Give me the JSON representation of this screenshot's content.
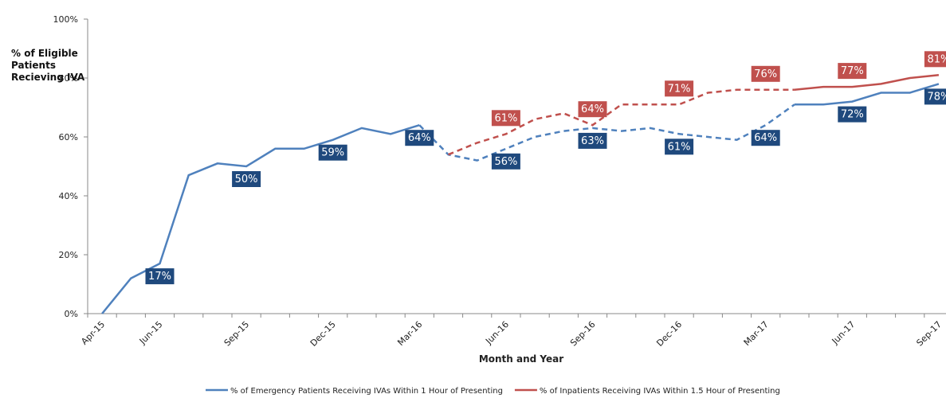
{
  "chart_data": {
    "type": "line",
    "y_axis_label": "% of Eligible Patients Recieving IVA",
    "x_axis_label": "Month and Year",
    "categories": [
      "Apr-15",
      null,
      "Jun-15",
      null,
      null,
      "Sep-15",
      null,
      null,
      "Dec-15",
      null,
      null,
      "Mar-16",
      null,
      null,
      "Jun-16",
      null,
      null,
      "Sep-16",
      null,
      null,
      "Dec-16",
      null,
      null,
      "Mar-17",
      null,
      null,
      "Jun-17",
      null,
      null,
      "Sep-17"
    ],
    "series": [
      {
        "name": "% of Emergency Patients Receiving IVAs Within 1 Hour of Presenting",
        "color": "#4f81bd",
        "label_color": "#1f497d",
        "dashed_range": [
          11,
          24
        ],
        "values": [
          0,
          12,
          17,
          47,
          51,
          50,
          56,
          56,
          59,
          63,
          61,
          64,
          54,
          52,
          56,
          60,
          62,
          63,
          62,
          63,
          61,
          60,
          59,
          64,
          71,
          71,
          72,
          75,
          75,
          78
        ],
        "value_labels": [
          null,
          null,
          "17%",
          null,
          null,
          "50%",
          null,
          null,
          "59%",
          null,
          null,
          "64%",
          null,
          null,
          "56%",
          null,
          null,
          "63%",
          null,
          null,
          "61%",
          null,
          null,
          "64%",
          null,
          null,
          "72%",
          null,
          null,
          "78%"
        ]
      },
      {
        "name": "% of Inpatients Receiving IVAs Within 1.5 Hour of Presenting",
        "color": "#c0504d",
        "label_color": "#c0504d",
        "dashed_range": [
          12,
          24
        ],
        "values": [
          null,
          null,
          null,
          null,
          null,
          null,
          null,
          null,
          null,
          null,
          null,
          null,
          54,
          58,
          61,
          66,
          68,
          64,
          71,
          71,
          71,
          75,
          76,
          76,
          76,
          77,
          77,
          78,
          80,
          81
        ],
        "value_labels": [
          null,
          null,
          null,
          null,
          null,
          null,
          null,
          null,
          null,
          null,
          null,
          null,
          null,
          null,
          "61%",
          null,
          null,
          "64%",
          null,
          null,
          "71%",
          null,
          null,
          "76%",
          null,
          null,
          "77%",
          null,
          null,
          "81%"
        ]
      }
    ],
    "ylim": [
      0,
      100
    ],
    "yticks": [
      {
        "value": 0,
        "label": "0%"
      },
      {
        "value": 20,
        "label": "20%"
      },
      {
        "value": 40,
        "label": "40%"
      },
      {
        "value": 60,
        "label": "60%"
      },
      {
        "value": 80,
        "label": "80%"
      },
      {
        "value": 100,
        "label": "100%"
      }
    ],
    "legend": "bottom"
  }
}
